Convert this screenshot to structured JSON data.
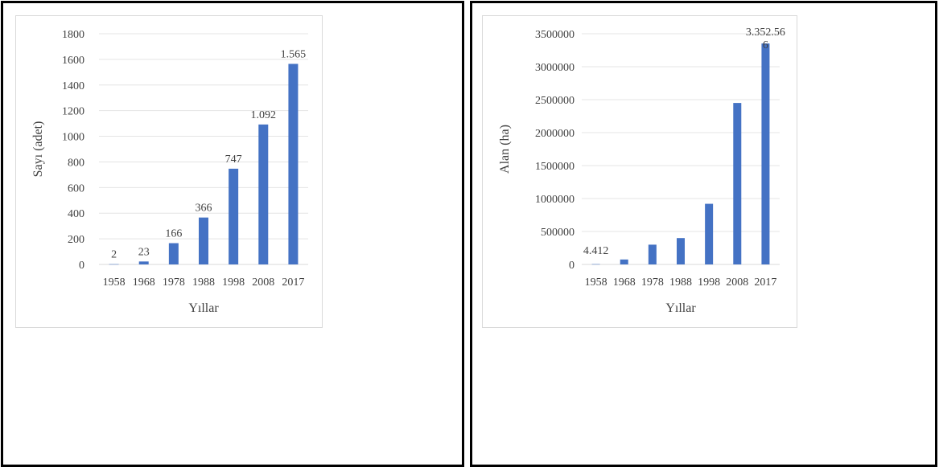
{
  "chart_data": [
    {
      "type": "bar",
      "title": "",
      "xlabel": "Yıllar",
      "ylabel": "Sayı (adet)",
      "categories": [
        "1958",
        "1968",
        "1978",
        "1988",
        "1998",
        "2008",
        "2017"
      ],
      "values": [
        2,
        23,
        166,
        366,
        747,
        1092,
        1565
      ],
      "data_labels": [
        "2",
        "23",
        "166",
        "366",
        "747",
        "1.092",
        "1.565"
      ],
      "yticks": [
        "0",
        "200",
        "400",
        "600",
        "800",
        "1000",
        "1200",
        "1400",
        "1600",
        "1800"
      ],
      "ylim": [
        0,
        1800
      ],
      "grid": true,
      "legend": "none",
      "bar_color": "#4472c4"
    },
    {
      "type": "bar",
      "title": "",
      "xlabel": "Yıllar",
      "ylabel": "Alan (ha)",
      "categories": [
        "1958",
        "1968",
        "1978",
        "1988",
        "1998",
        "2008",
        "2017"
      ],
      "values": [
        4412,
        75000,
        300000,
        400000,
        920000,
        2450000,
        3352566
      ],
      "data_labels": [
        "4.412",
        "",
        "",
        "",
        "",
        "",
        "3.352.566"
      ],
      "yticks": [
        "0",
        "500000",
        "1000000",
        "1500000",
        "2000000",
        "2500000",
        "3000000",
        "3500000"
      ],
      "ylim": [
        0,
        3500000
      ],
      "grid": true,
      "legend": "none",
      "bar_color": "#4472c4"
    }
  ]
}
